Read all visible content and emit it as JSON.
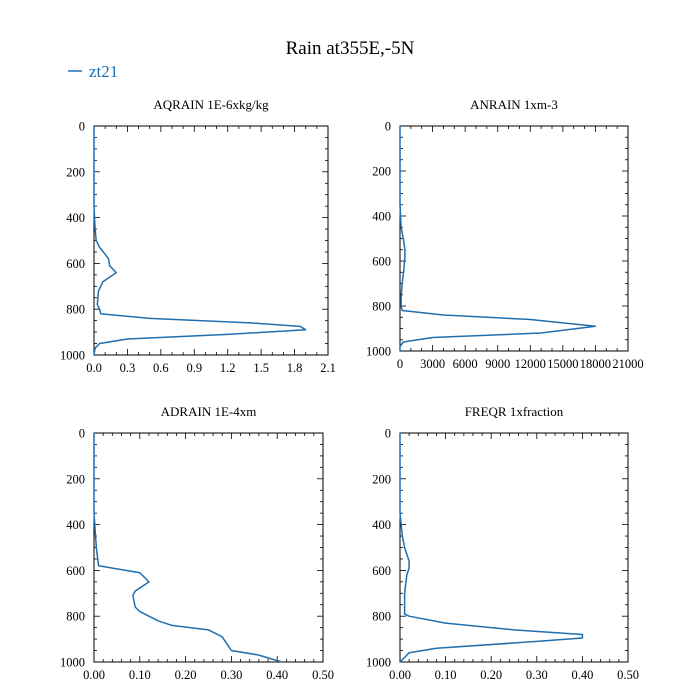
{
  "chart_data": {
    "title": "Rain at355E,-5N",
    "legend": {
      "label": "zt21",
      "color": "#1f6fb0",
      "placement": "top-left"
    },
    "y_axis": {
      "reversed": true,
      "range": [
        0,
        1000
      ],
      "ticks": [
        0,
        200,
        400,
        600,
        800,
        1000
      ]
    },
    "panels": [
      {
        "type": "line",
        "title": "AQRAIN  1E-6xkg/kg",
        "xlim": [
          0,
          2.1
        ],
        "xticks": [
          "0.0",
          "0.3",
          "0.6",
          "0.9",
          "1.2",
          "1.5",
          "1.8",
          "2.1"
        ],
        "xtick_values": [
          0,
          0.3,
          0.6,
          0.9,
          1.2,
          1.5,
          1.8,
          2.1
        ],
        "ylim": [
          0,
          1000
        ],
        "yticks": [
          "0",
          "200",
          "400",
          "600",
          "800",
          "1000"
        ],
        "series": [
          {
            "x": [
              0,
              0,
              0.01,
              0.02,
              0.05,
              0.1,
              0.13,
              0.14,
              0.2,
              0.08,
              0.04,
              0.03,
              0.05,
              0.06,
              0.5,
              1.4,
              1.85,
              1.9,
              1.2,
              0.3,
              0.05,
              0.01,
              0
            ],
            "y": [
              0,
              350,
              450,
              500,
              530,
              560,
              580,
              610,
              640,
              680,
              720,
              780,
              800,
              820,
              840,
              860,
              875,
              890,
              910,
              930,
              950,
              970,
              1000
            ]
          }
        ]
      },
      {
        "type": "line",
        "title": "ANRAIN  1xm-3",
        "xlim": [
          0,
          21000
        ],
        "xticks": [
          "0",
          "3000",
          "6000",
          "9000",
          "12000",
          "15000",
          "18000",
          "21000"
        ],
        "xtick_values": [
          0,
          3000,
          6000,
          9000,
          12000,
          15000,
          18000,
          21000
        ],
        "ylim": [
          0,
          1000
        ],
        "yticks": [
          "0",
          "200",
          "400",
          "600",
          "800",
          "1000"
        ],
        "series": [
          {
            "x": [
              0,
              0,
              100,
              300,
              450,
              450,
              350,
              200,
              100,
              100,
              200,
              4000,
              12000,
              18000,
              13000,
              3000,
              300,
              0,
              0
            ],
            "y": [
              0,
              350,
              450,
              500,
              550,
              580,
              640,
              700,
              760,
              800,
              820,
              840,
              860,
              890,
              920,
              940,
              960,
              980,
              1000
            ]
          }
        ]
      },
      {
        "type": "line",
        "title": "ADRAIN  1E-4xm",
        "xlim": [
          0,
          0.5
        ],
        "xticks": [
          "0.00",
          "0.10",
          "0.20",
          "0.30",
          "0.40",
          "0.50"
        ],
        "xtick_values": [
          0,
          0.1,
          0.2,
          0.3,
          0.4,
          0.5
        ],
        "ylim": [
          0,
          1000
        ],
        "yticks": [
          "0",
          "200",
          "400",
          "600",
          "800",
          "1000"
        ],
        "series": [
          {
            "x": [
              0,
              0,
              0.005,
              0.01,
              0.1,
              0.12,
              0.09,
              0.085,
              0.09,
              0.1,
              0.14,
              0.17,
              0.25,
              0.28,
              0.29,
              0.3,
              0.36,
              0.41
            ],
            "y": [
              0,
              350,
              500,
              580,
              610,
              650,
              690,
              710,
              760,
              780,
              820,
              840,
              860,
              890,
              920,
              950,
              970,
              1000
            ]
          }
        ]
      },
      {
        "type": "line",
        "title": "FREQR  1xfraction",
        "xlim": [
          0,
          0.5
        ],
        "xticks": [
          "0.00",
          "0.10",
          "0.20",
          "0.30",
          "0.40",
          "0.50"
        ],
        "xtick_values": [
          0,
          0.1,
          0.2,
          0.3,
          0.4,
          0.5
        ],
        "ylim": [
          0,
          1000
        ],
        "yticks": [
          "0",
          "200",
          "400",
          "600",
          "800",
          "1000"
        ],
        "series": [
          {
            "x": [
              0,
              0,
              0.005,
              0.01,
              0.02,
              0.02,
              0.015,
              0.01,
              0.01,
              0.02,
              0.1,
              0.25,
              0.4,
              0.4,
              0.3,
              0.08,
              0.02,
              0.01,
              0
            ],
            "y": [
              0,
              350,
              450,
              500,
              560,
              590,
              620,
              700,
              790,
              800,
              830,
              860,
              880,
              895,
              910,
              940,
              960,
              980,
              1000
            ]
          }
        ]
      }
    ]
  }
}
